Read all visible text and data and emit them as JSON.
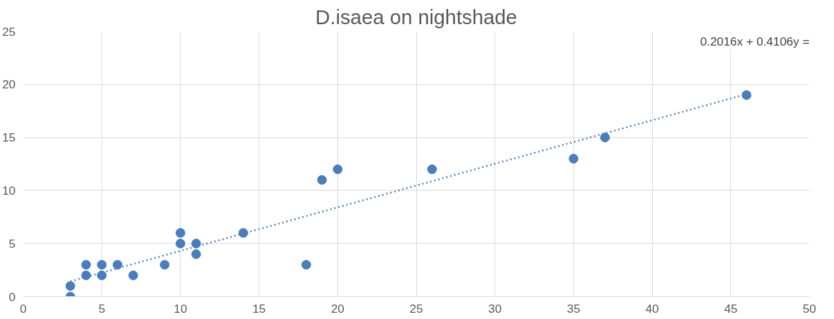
{
  "chart_data": {
    "type": "scatter",
    "title": "D.isaea on nightshade",
    "annotations": [
      "0.2016x + 0.4106y ="
    ],
    "series": [
      {
        "color": "#4a7ebb",
        "x": [
          3,
          3,
          4,
          4,
          5,
          5,
          6,
          7,
          9,
          10,
          10,
          11,
          11,
          14,
          18,
          19,
          20,
          26,
          35,
          37,
          46
        ],
        "values": [
          0,
          1,
          2,
          3,
          2,
          3,
          3,
          2,
          3,
          5,
          6,
          4,
          5,
          6,
          3,
          11,
          12,
          12,
          13,
          15,
          19
        ]
      },
      {
        "type": "line",
        "color": "#4a7ebb",
        "line_style": "dotted",
        "marker": "none",
        "x": [
          3,
          46
        ],
        "values": [
          1.43,
          19.09
        ]
      }
    ],
    "marker": "circle",
    "xlim": [
      0,
      50
    ],
    "ylim": [
      0,
      25
    ],
    "xticks": [
      0,
      5,
      10,
      15,
      20,
      25,
      30,
      35,
      40,
      45,
      50
    ],
    "yticks": [
      0,
      5,
      10,
      15,
      20,
      25
    ],
    "grid": true
  }
}
